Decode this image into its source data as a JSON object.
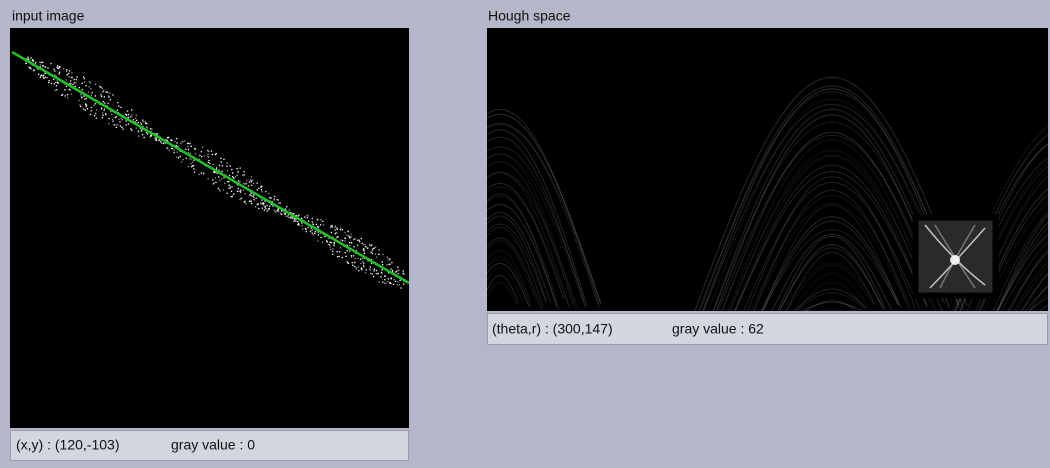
{
  "panels": [
    {
      "title": "input image",
      "status": {
        "coords": "(x,y) : (120,-103)",
        "gray": "gray value : 0"
      }
    },
    {
      "title": "Hough space",
      "status": {
        "coords": "(theta,r) : (300,147)",
        "gray": "gray value : 62"
      }
    }
  ]
}
